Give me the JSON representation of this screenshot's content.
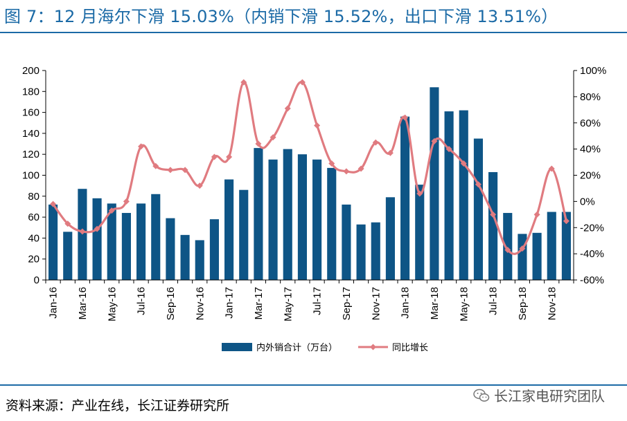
{
  "title": "图 7：12 月海尔下滑 15.03%（内销下滑 15.52%，出口下滑 13.51%）",
  "source": "资料来源：产业在线，长江证券研究所",
  "watermark": "长江家电研究团队",
  "colors": {
    "title": "#1b6aa6",
    "bar": "#0e5586",
    "line": "#e07b80"
  },
  "chart_data": {
    "type": "bar+line",
    "categories": [
      "Jan-16",
      "Feb-16",
      "Mar-16",
      "Apr-16",
      "May-16",
      "Jun-16",
      "Jul-16",
      "Aug-16",
      "Sep-16",
      "Oct-16",
      "Nov-16",
      "Dec-16",
      "Jan-17",
      "Feb-17",
      "Mar-17",
      "Apr-17",
      "May-17",
      "Jun-17",
      "Jul-17",
      "Aug-17",
      "Sep-17",
      "Oct-17",
      "Nov-17",
      "Dec-17",
      "Jan-18",
      "Feb-18",
      "Mar-18",
      "Apr-18",
      "May-18",
      "Jun-18",
      "Jul-18",
      "Aug-18",
      "Sep-18",
      "Oct-18",
      "Nov-18",
      "Dec-18"
    ],
    "x_tick_labels": [
      "Jan-16",
      "Mar-16",
      "May-16",
      "Jul-16",
      "Sep-16",
      "Nov-16",
      "Jan-17",
      "Mar-17",
      "May-17",
      "Jul-17",
      "Sep-17",
      "Nov-17",
      "Jan-18",
      "Mar-18",
      "May-18",
      "Jul-18",
      "Sep-18",
      "Nov-18"
    ],
    "series": [
      {
        "name": "内外销合计（万台）",
        "type": "bar",
        "axis": "left",
        "values": [
          72,
          46,
          87,
          78,
          73,
          64,
          73,
          82,
          59,
          43,
          38,
          58,
          96,
          86,
          126,
          115,
          125,
          120,
          115,
          107,
          72,
          53,
          55,
          79,
          156,
          91,
          184,
          161,
          162,
          135,
          103,
          64,
          44,
          45,
          65,
          65
        ]
      },
      {
        "name": "同比增长",
        "type": "line",
        "axis": "right",
        "values": [
          -2,
          -17,
          -23,
          -21,
          -7,
          0,
          42,
          27,
          24,
          24,
          12,
          34,
          34,
          91,
          44,
          49,
          71,
          91,
          58,
          29,
          23,
          25,
          45,
          37,
          64,
          6,
          46,
          40,
          29,
          13,
          -10,
          -37,
          -36,
          -10,
          25,
          -15
        ]
      }
    ],
    "y_left": {
      "range": [
        0,
        200
      ],
      "ticks": [
        "0",
        "20",
        "40",
        "60",
        "80",
        "100",
        "120",
        "140",
        "160",
        "180",
        "200"
      ]
    },
    "y_right": {
      "range": [
        -60,
        100
      ],
      "ticks": [
        "-60%",
        "-40%",
        "-20%",
        "0%",
        "20%",
        "40%",
        "60%",
        "80%",
        "100%"
      ]
    },
    "legend": {
      "placement": "bottom",
      "items": [
        "内外销合计（万台）",
        "同比增长"
      ]
    },
    "grid": false
  }
}
